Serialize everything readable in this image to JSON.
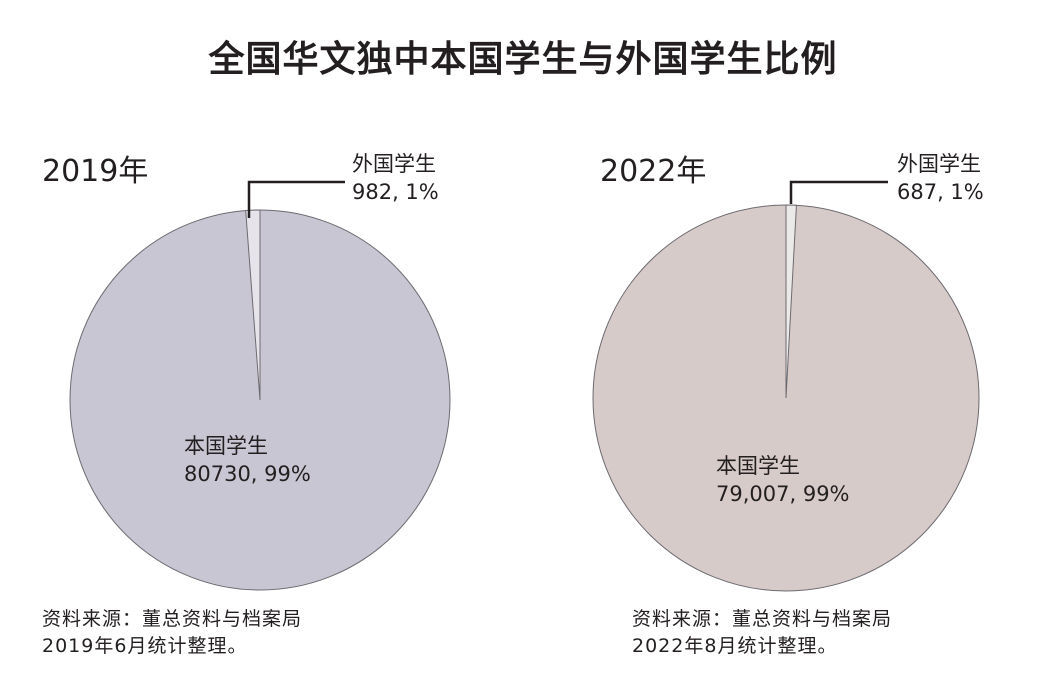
{
  "title": "全国华文独中本国学生与外国学生比例",
  "chart_data": [
    {
      "type": "pie",
      "title": "2019年",
      "slices": [
        {
          "label": "本国学生",
          "value": 80730,
          "percent_label": "80730, 99%",
          "color": "#c9c6d3"
        },
        {
          "label": "外国学生",
          "value": 982,
          "percent_label": "982, 1%",
          "color": "#e6e4ea"
        }
      ],
      "source": [
        "资料来源：董总资料与档案局",
        "2019年6月统计整理。"
      ]
    },
    {
      "type": "pie",
      "title": "2022年",
      "slices": [
        {
          "label": "本国学生",
          "value": 79007,
          "percent_label": "79,007, 99%",
          "color": "#d6cbc8"
        },
        {
          "label": "外国学生",
          "value": 687,
          "percent_label": "687, 1%",
          "color": "#ece9e9"
        }
      ],
      "source": [
        "资料来源：董总资料与档案局",
        "2022年8月统计整理。"
      ]
    }
  ]
}
